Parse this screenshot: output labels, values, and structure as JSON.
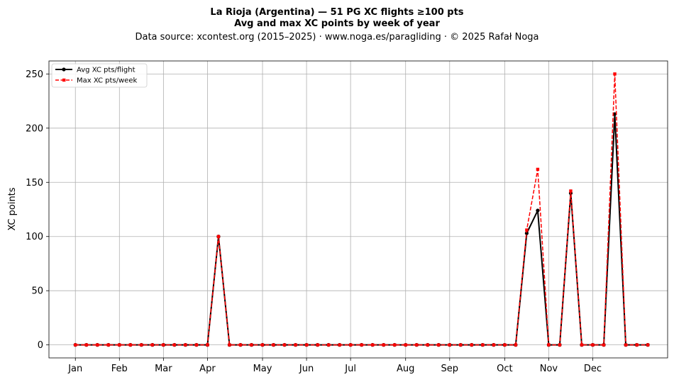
{
  "chart_data": {
    "type": "line",
    "title": "La Rioja (Argentina)  —  51 PG XC flights ≥100 pts",
    "subtitle": "Avg and max XC points by week of year",
    "source_line": "Data source: xcontest.org (2015–2025)  ·  www.noga.es/paragliding  ·  © 2025 Rafał Noga",
    "xlabel": "",
    "ylabel": "XC points",
    "ylim": [
      -12,
      262
    ],
    "xlim": [
      -1.4,
      54.8
    ],
    "grid": true,
    "legend_position": "top-left",
    "month_ticks": [
      {
        "label": "Jan",
        "week": 1
      },
      {
        "label": "Feb",
        "week": 5
      },
      {
        "label": "Mar",
        "week": 9
      },
      {
        "label": "Apr",
        "week": 13
      },
      {
        "label": "May",
        "week": 18
      },
      {
        "label": "Jun",
        "week": 22
      },
      {
        "label": "Jul",
        "week": 26
      },
      {
        "label": "Aug",
        "week": 31
      },
      {
        "label": "Sep",
        "week": 35
      },
      {
        "label": "Oct",
        "week": 40
      },
      {
        "label": "Nov",
        "week": 44
      },
      {
        "label": "Dec",
        "week": 48
      }
    ],
    "y_ticks": [
      0,
      50,
      100,
      150,
      200,
      250
    ],
    "x": [
      1,
      2,
      3,
      4,
      5,
      6,
      7,
      8,
      9,
      10,
      11,
      12,
      13,
      14,
      15,
      16,
      17,
      18,
      19,
      20,
      21,
      22,
      23,
      24,
      25,
      26,
      27,
      28,
      29,
      30,
      31,
      32,
      33,
      34,
      35,
      36,
      37,
      38,
      39,
      40,
      41,
      42,
      43,
      44,
      45,
      46,
      47,
      48,
      49,
      50,
      51,
      52,
      53
    ],
    "series": [
      {
        "name": "Avg XC pts/flight",
        "color": "#000000",
        "style": "solid",
        "marker": "circle",
        "values": [
          0,
          0,
          0,
          0,
          0,
          0,
          0,
          0,
          0,
          0,
          0,
          0,
          0,
          100,
          0,
          0,
          0,
          0,
          0,
          0,
          0,
          0,
          0,
          0,
          0,
          0,
          0,
          0,
          0,
          0,
          0,
          0,
          0,
          0,
          0,
          0,
          0,
          0,
          0,
          0,
          0,
          103,
          124,
          0,
          0,
          140,
          0,
          0,
          0,
          213,
          0,
          0,
          0
        ]
      },
      {
        "name": "Max XC pts/week",
        "color": "#ff0000",
        "style": "dashed",
        "marker": "square",
        "values": [
          0,
          0,
          0,
          0,
          0,
          0,
          0,
          0,
          0,
          0,
          0,
          0,
          0,
          100,
          0,
          0,
          0,
          0,
          0,
          0,
          0,
          0,
          0,
          0,
          0,
          0,
          0,
          0,
          0,
          0,
          0,
          0,
          0,
          0,
          0,
          0,
          0,
          0,
          0,
          0,
          0,
          106,
          162,
          0,
          0,
          142,
          0,
          0,
          0,
          250,
          0,
          0,
          0
        ]
      }
    ]
  }
}
